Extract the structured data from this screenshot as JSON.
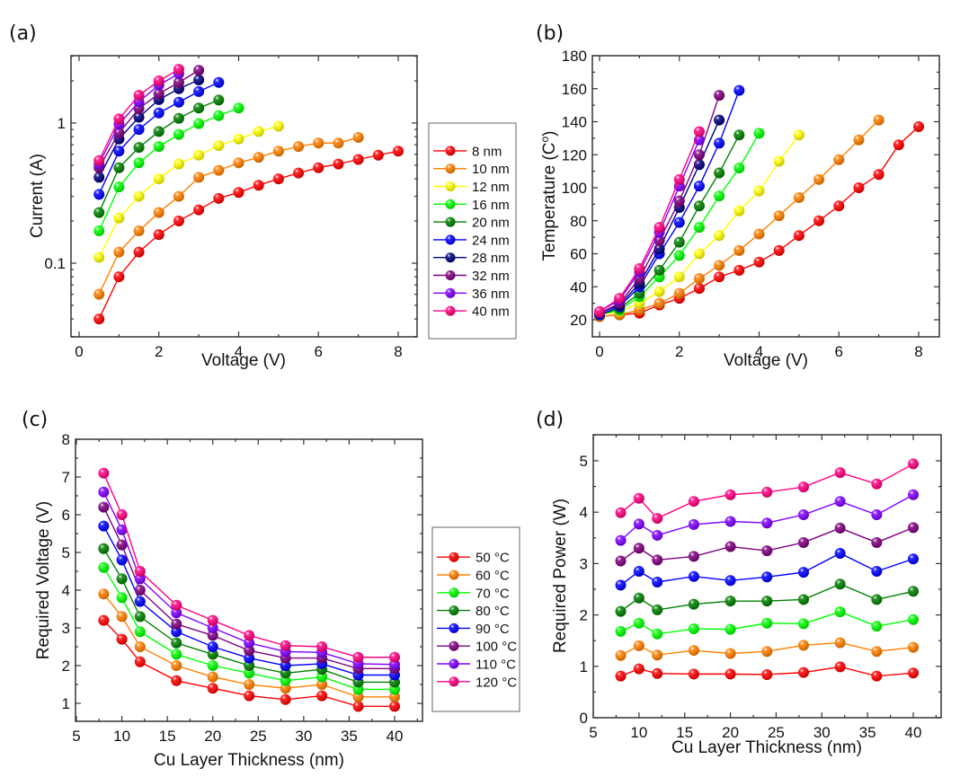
{
  "figure": {
    "panels": [
      {
        "id": "a",
        "label": "(a)"
      },
      {
        "id": "b",
        "label": "(b)"
      },
      {
        "id": "c",
        "label": "(c)"
      },
      {
        "id": "d",
        "label": "(d)"
      }
    ]
  },
  "chart_data": [
    {
      "id": "a",
      "panel_label": "(a)",
      "type": "line",
      "yscale": "log",
      "title": "",
      "xlabel": "Voltage (V)",
      "ylabel": "Current (A)",
      "xlim": [
        -0.2,
        8.5
      ],
      "ylim": [
        0.03,
        3.0
      ],
      "xticks": [
        0,
        2,
        4,
        6,
        8
      ],
      "xtick_labels": [
        "0",
        "2",
        "4",
        "6",
        "8"
      ],
      "yticks": [
        0.1,
        1
      ],
      "ytick_labels": [
        "0.1",
        "1"
      ],
      "legend_position": "right-outside",
      "series": [
        {
          "name": "8 nm",
          "color": "#ff0000",
          "x": [
            0.5,
            1,
            1.5,
            2,
            2.5,
            3,
            3.5,
            4,
            4.5,
            5,
            5.5,
            6,
            6.5,
            7,
            7.5,
            8
          ],
          "y": [
            0.04,
            0.08,
            0.12,
            0.16,
            0.2,
            0.24,
            0.29,
            0.32,
            0.36,
            0.4,
            0.44,
            0.48,
            0.51,
            0.55,
            0.59,
            0.63
          ]
        },
        {
          "name": "10 nm",
          "color": "#ff8000",
          "x": [
            0.5,
            1,
            1.5,
            2,
            2.5,
            3,
            3.5,
            4,
            4.5,
            5,
            5.5,
            6,
            6.5,
            7
          ],
          "y": [
            0.06,
            0.12,
            0.17,
            0.23,
            0.3,
            0.41,
            0.46,
            0.52,
            0.57,
            0.63,
            0.68,
            0.72,
            0.72,
            0.79
          ]
        },
        {
          "name": "12 nm",
          "color": "#ffff00",
          "x": [
            0.5,
            1,
            1.5,
            2,
            2.5,
            3,
            3.5,
            4,
            4.5,
            5
          ],
          "y": [
            0.11,
            0.21,
            0.3,
            0.4,
            0.51,
            0.59,
            0.69,
            0.77,
            0.87,
            0.95
          ]
        },
        {
          "name": "16 nm",
          "color": "#00ff00",
          "x": [
            0.5,
            1,
            1.5,
            2,
            2.5,
            3,
            3.5,
            4
          ],
          "y": [
            0.17,
            0.35,
            0.52,
            0.68,
            0.83,
            0.99,
            1.13,
            1.28
          ]
        },
        {
          "name": "20 nm",
          "color": "#008000",
          "x": [
            0.5,
            1,
            1.5,
            2,
            2.5,
            3,
            3.5
          ],
          "y": [
            0.23,
            0.48,
            0.67,
            0.87,
            1.08,
            1.28,
            1.46
          ]
        },
        {
          "name": "24 nm",
          "color": "#0000ff",
          "x": [
            0.5,
            1,
            1.5,
            2,
            2.5,
            3,
            3.5
          ],
          "y": [
            0.31,
            0.63,
            0.9,
            1.18,
            1.41,
            1.68,
            1.95
          ]
        },
        {
          "name": "28 nm",
          "color": "#000080",
          "x": [
            0.5,
            1,
            1.5,
            2,
            2.5,
            3
          ],
          "y": [
            0.41,
            0.77,
            1.1,
            1.47,
            1.76,
            2.03
          ]
        },
        {
          "name": "32 nm",
          "color": "#800080",
          "x": [
            0.5,
            1,
            1.5,
            2,
            2.5,
            3
          ],
          "y": [
            0.48,
            0.85,
            1.27,
            1.62,
            1.95,
            2.38
          ]
        },
        {
          "name": "36 nm",
          "color": "#8000ff",
          "x": [
            0.5,
            1,
            1.5,
            2,
            2.5
          ],
          "y": [
            0.51,
            0.98,
            1.42,
            1.87,
            2.25
          ]
        },
        {
          "name": "40 nm",
          "color": "#ff0080",
          "x": [
            0.5,
            1,
            1.5,
            2,
            2.5
          ],
          "y": [
            0.54,
            1.07,
            1.58,
            2.0,
            2.42
          ]
        }
      ]
    },
    {
      "id": "b",
      "panel_label": "(b)",
      "type": "line",
      "title": "",
      "xlabel": "Voltage (V)",
      "ylabel": "Temperature (C°)",
      "ylabel_main": "Temperature (C",
      "ylabel_sup": "o",
      "ylabel_end": ")",
      "xlim": [
        -0.2,
        8.5
      ],
      "ylim": [
        16,
        180
      ],
      "xticks": [
        0,
        2,
        4,
        6,
        8
      ],
      "xtick_labels": [
        "0",
        "2",
        "4",
        "6",
        "8"
      ],
      "yticks": [
        20,
        40,
        60,
        80,
        100,
        120,
        140,
        160,
        180
      ],
      "ytick_labels": [
        "20",
        "40",
        "60",
        "80",
        "100",
        "120",
        "140",
        "160",
        "180"
      ],
      "series": [
        {
          "name": "8 nm",
          "color": "#ff0000",
          "x": [
            0,
            0.5,
            1,
            1.5,
            2,
            2.5,
            3,
            3.5,
            4,
            4.5,
            5,
            5.5,
            6,
            6.5,
            7,
            7.5,
            8
          ],
          "y": [
            22,
            23,
            24,
            29,
            33,
            39,
            46,
            50,
            55,
            62,
            71,
            80,
            89,
            100,
            108,
            126,
            137
          ]
        },
        {
          "name": "10 nm",
          "color": "#ff8000",
          "x": [
            0,
            0.5,
            1,
            1.5,
            2,
            2.5,
            3,
            3.5,
            4,
            4.5,
            5,
            5.5,
            6,
            6.5,
            7
          ],
          "y": [
            22,
            23,
            26,
            30,
            36,
            45,
            53,
            62,
            72,
            83,
            94,
            105,
            117,
            129,
            141
          ]
        },
        {
          "name": "12 nm",
          "color": "#ffff00",
          "x": [
            0,
            0.5,
            1,
            1.5,
            2,
            2.5,
            3,
            3.5,
            4,
            4.5,
            5
          ],
          "y": [
            23,
            25,
            30,
            37,
            46,
            60,
            71,
            86,
            98,
            116,
            132
          ]
        },
        {
          "name": "16 nm",
          "color": "#00ff00",
          "x": [
            0,
            0.5,
            1,
            1.5,
            2,
            2.5,
            3,
            3.5,
            4
          ],
          "y": [
            23,
            26,
            34,
            46,
            59,
            76,
            95,
            112,
            133
          ]
        },
        {
          "name": "20 nm",
          "color": "#008000",
          "x": [
            0,
            0.5,
            1,
            1.5,
            2,
            2.5,
            3,
            3.5
          ],
          "y": [
            23,
            27,
            36,
            50,
            67,
            89,
            109,
            132
          ]
        },
        {
          "name": "24 nm",
          "color": "#0000ff",
          "x": [
            0,
            0.5,
            1,
            1.5,
            2,
            2.5,
            3,
            3.5
          ],
          "y": [
            23,
            28,
            40,
            60,
            79,
            101,
            127,
            159
          ]
        },
        {
          "name": "28 nm",
          "color": "#000080",
          "x": [
            0,
            0.5,
            1,
            1.5,
            2,
            2.5,
            3
          ],
          "y": [
            24,
            29,
            42,
            63,
            88,
            114,
            141
          ]
        },
        {
          "name": "32 nm",
          "color": "#800080",
          "x": [
            0,
            0.5,
            1,
            1.5,
            2,
            2.5,
            3
          ],
          "y": [
            24,
            30,
            45,
            68,
            92,
            120,
            156
          ]
        },
        {
          "name": "36 nm",
          "color": "#8000ff",
          "x": [
            0,
            0.5,
            1,
            1.5,
            2,
            2.5
          ],
          "y": [
            25,
            32,
            49,
            73,
            101,
            129
          ]
        },
        {
          "name": "40 nm",
          "color": "#ff0080",
          "x": [
            0,
            0.5,
            1,
            1.5,
            2,
            2.5
          ],
          "y": [
            25,
            33,
            51,
            76,
            105,
            134
          ]
        }
      ]
    },
    {
      "id": "c",
      "panel_label": "(c)",
      "type": "line",
      "title": "",
      "xlabel": "Cu Layer Thickness (nm)",
      "ylabel": "Required Voltage (V)",
      "xlim": [
        5,
        43
      ],
      "ylim": [
        0.5,
        8
      ],
      "xticks": [
        5,
        10,
        15,
        20,
        25,
        30,
        35,
        40
      ],
      "xtick_labels": [
        "5",
        "10",
        "15",
        "20",
        "25",
        "30",
        "35",
        "40"
      ],
      "yticks": [
        1,
        2,
        3,
        4,
        5,
        6,
        7,
        8
      ],
      "ytick_labels": [
        "1",
        "2",
        "3",
        "4",
        "5",
        "6",
        "7",
        "8"
      ],
      "legend_position": "right-outside",
      "x": [
        8,
        10,
        12,
        16,
        20,
        24,
        28,
        32,
        36,
        40
      ],
      "series": [
        {
          "name": "50 °C",
          "color": "#ff0000",
          "y": [
            3.2,
            2.7,
            2.1,
            1.6,
            1.4,
            1.2,
            1.1,
            1.2,
            0.92,
            0.92
          ]
        },
        {
          "name": "60 °C",
          "color": "#ff8000",
          "y": [
            3.9,
            3.3,
            2.5,
            2.0,
            1.7,
            1.5,
            1.4,
            1.5,
            1.17,
            1.17
          ]
        },
        {
          "name": "70 °C",
          "color": "#00ff00",
          "y": [
            4.6,
            3.8,
            2.9,
            2.3,
            2.0,
            1.8,
            1.6,
            1.7,
            1.37,
            1.37
          ]
        },
        {
          "name": "80 °C",
          "color": "#008000",
          "y": [
            5.1,
            4.3,
            3.3,
            2.6,
            2.3,
            2.0,
            1.8,
            1.9,
            1.56,
            1.56
          ]
        },
        {
          "name": "90 °C",
          "color": "#0000ff",
          "y": [
            5.7,
            4.8,
            3.7,
            2.9,
            2.5,
            2.2,
            2.0,
            2.05,
            1.75,
            1.75
          ]
        },
        {
          "name": "100 °C",
          "color": "#800080",
          "y": [
            6.2,
            5.2,
            4.0,
            3.1,
            2.8,
            2.4,
            2.2,
            2.2,
            1.92,
            1.92
          ]
        },
        {
          "name": "110 °C",
          "color": "#8000ff",
          "y": [
            6.6,
            5.6,
            4.3,
            3.4,
            3.0,
            2.6,
            2.37,
            2.35,
            2.05,
            2.03
          ]
        },
        {
          "name": "120 °C",
          "color": "#ff0080",
          "y": [
            7.1,
            6.0,
            4.5,
            3.6,
            3.2,
            2.8,
            2.53,
            2.5,
            2.22,
            2.22
          ]
        }
      ]
    },
    {
      "id": "d",
      "panel_label": "(d)",
      "type": "line",
      "title": "",
      "xlabel": "Cu Layer Thickness (nm)",
      "ylabel": "Required Power (W)",
      "xlim": [
        5,
        43
      ],
      "ylim": [
        0,
        5.5
      ],
      "xticks": [
        5,
        10,
        15,
        20,
        25,
        30,
        35,
        40
      ],
      "xtick_labels": [
        "5",
        "10",
        "15",
        "20",
        "25",
        "30",
        "35",
        "40"
      ],
      "yticks": [
        0,
        1,
        2,
        3,
        4,
        5
      ],
      "ytick_labels": [
        "0",
        "1",
        "2",
        "3",
        "4",
        "5"
      ],
      "x": [
        8,
        10,
        12,
        16,
        20,
        24,
        28,
        32,
        36,
        40
      ],
      "series": [
        {
          "name": "50 °C",
          "color": "#ff0000",
          "y": [
            0.81,
            0.95,
            0.86,
            0.85,
            0.85,
            0.84,
            0.88,
            0.99,
            0.81,
            0.87
          ]
        },
        {
          "name": "60 °C",
          "color": "#ff8000",
          "y": [
            1.21,
            1.4,
            1.22,
            1.31,
            1.25,
            1.29,
            1.41,
            1.46,
            1.29,
            1.37
          ]
        },
        {
          "name": "70 °C",
          "color": "#00ff00",
          "y": [
            1.68,
            1.84,
            1.63,
            1.73,
            1.72,
            1.84,
            1.83,
            2.06,
            1.78,
            1.91
          ]
        },
        {
          "name": "80 °C",
          "color": "#008000",
          "y": [
            2.07,
            2.33,
            2.1,
            2.21,
            2.27,
            2.27,
            2.3,
            2.6,
            2.3,
            2.46
          ]
        },
        {
          "name": "90 °C",
          "color": "#0000ff",
          "y": [
            2.58,
            2.85,
            2.64,
            2.75,
            2.67,
            2.74,
            2.83,
            3.2,
            2.85,
            3.09
          ]
        },
        {
          "name": "100 °C",
          "color": "#800080",
          "y": [
            3.05,
            3.3,
            3.07,
            3.14,
            3.33,
            3.25,
            3.41,
            3.69,
            3.41,
            3.7
          ]
        },
        {
          "name": "110 °C",
          "color": "#8000ff",
          "y": [
            3.45,
            3.77,
            3.55,
            3.76,
            3.82,
            3.79,
            3.95,
            4.21,
            3.95,
            4.34
          ]
        },
        {
          "name": "120 °C",
          "color": "#ff0080",
          "y": [
            3.99,
            4.27,
            3.88,
            4.21,
            4.34,
            4.39,
            4.49,
            4.77,
            4.55,
            4.94
          ]
        }
      ]
    }
  ]
}
